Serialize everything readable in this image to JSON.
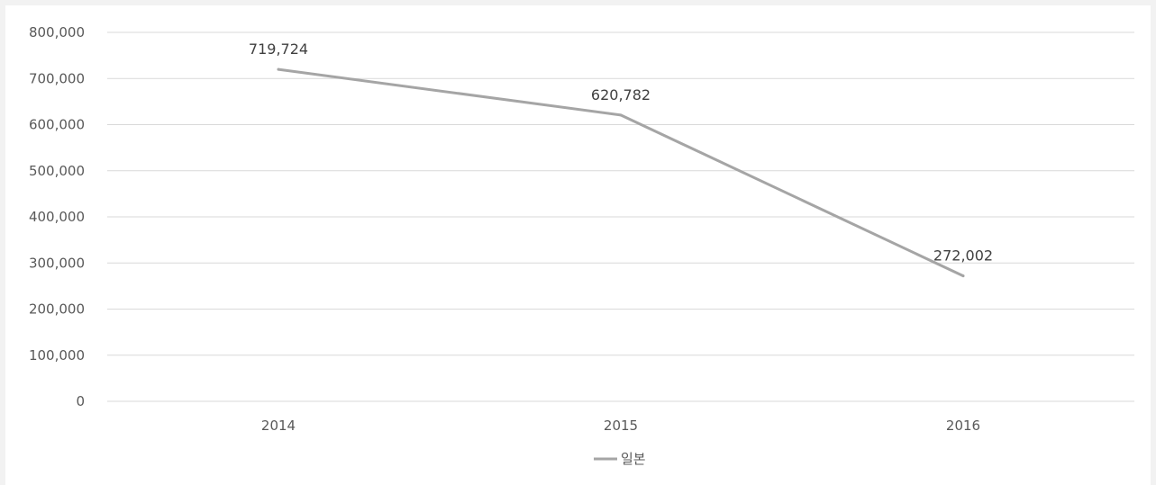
{
  "chart_data": {
    "type": "line",
    "title": "",
    "xlabel": "",
    "ylabel": "",
    "categories": [
      "2014",
      "2015",
      "2016"
    ],
    "series": [
      {
        "name": "일본",
        "values": [
          719724,
          620782,
          272002
        ],
        "data_labels": [
          "719,724",
          "620,782",
          "272,002"
        ],
        "color": "#a5a5a5"
      }
    ],
    "ylim": [
      0,
      800000
    ],
    "yticks": [
      0,
      100000,
      200000,
      300000,
      400000,
      500000,
      600000,
      700000,
      800000
    ],
    "ytick_labels": [
      "0",
      "100,000",
      "200,000",
      "300,000",
      "400,000",
      "500,000",
      "600,000",
      "700,000",
      "800,000"
    ],
    "grid": true,
    "legend_position": "bottom",
    "colors": {
      "gridline": "#d9d9d9",
      "axis_text": "#595959",
      "background": "#ffffff"
    }
  }
}
